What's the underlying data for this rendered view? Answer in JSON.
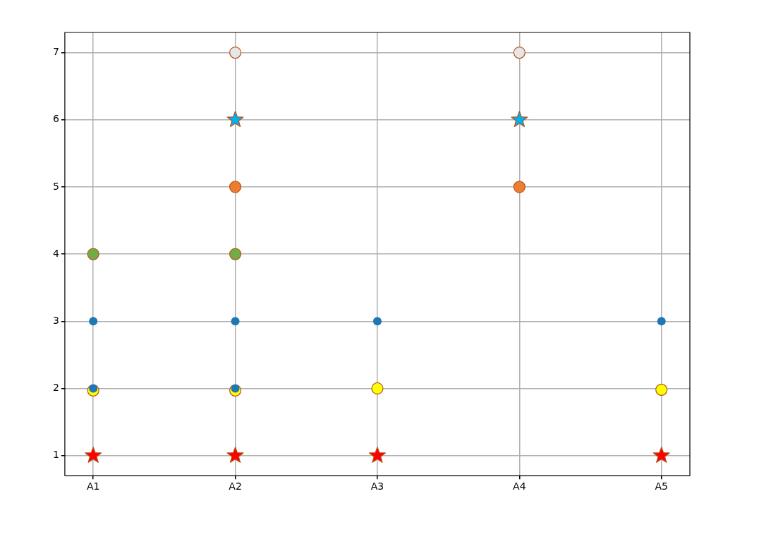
{
  "chart_data": {
    "type": "scatter",
    "categories": [
      "A1",
      "A2",
      "A3",
      "A4",
      "A5"
    ],
    "ylim": [
      0.7,
      7.3
    ],
    "yticks": [
      1,
      2,
      3,
      4,
      5,
      6,
      7
    ],
    "grid": true,
    "series": [
      {
        "color": "#1f77b4",
        "marker": "circle",
        "values": [
          3,
          3,
          3,
          null,
          3
        ]
      },
      {
        "color": "#1f77b4",
        "marker": "circle",
        "values": [
          2,
          2,
          null,
          null,
          null
        ]
      },
      {
        "color": "#ffff00",
        "marker": "circle",
        "values": [
          1.97,
          1.97,
          2,
          null,
          1.98
        ]
      },
      {
        "color": "#ff0000",
        "marker": "star",
        "values": [
          1,
          1,
          1,
          null,
          1
        ]
      },
      {
        "color": "#70ad47",
        "marker": "circle",
        "values": [
          4,
          4,
          null,
          null,
          null
        ]
      },
      {
        "color": "#ed7d31",
        "marker": "circle",
        "values": [
          null,
          5,
          null,
          5,
          null
        ]
      },
      {
        "color": "#00b0f0",
        "marker": "star",
        "values": [
          null,
          6,
          null,
          6,
          null
        ]
      },
      {
        "color": "#e7e6e6",
        "marker": "circle",
        "values": [
          null,
          7,
          null,
          7,
          null
        ]
      }
    ]
  }
}
